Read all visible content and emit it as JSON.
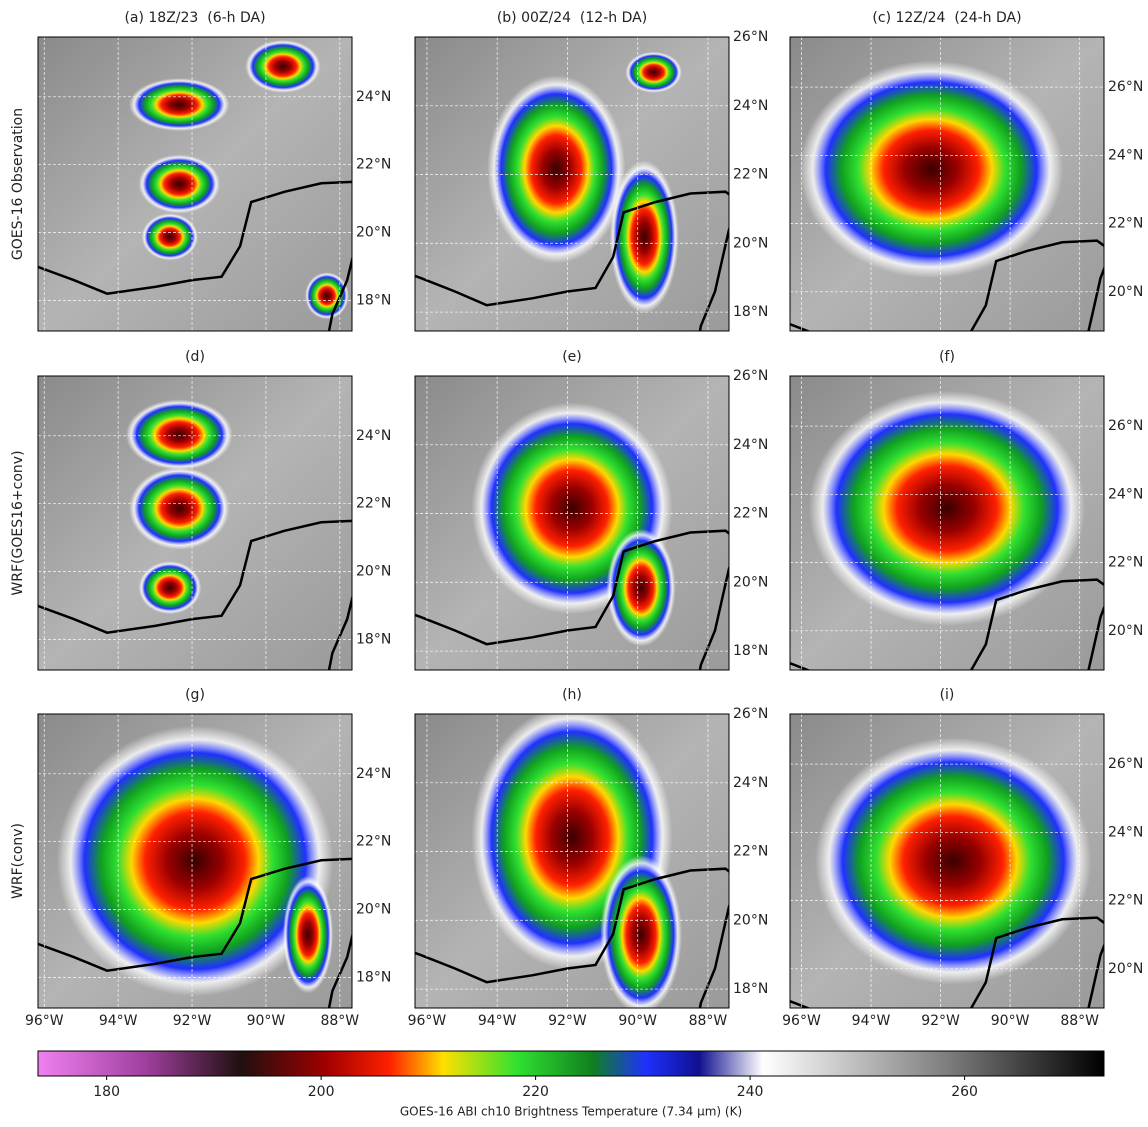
{
  "panels": [
    {
      "title": "(a) 18Z/23  (6-h DA)"
    },
    {
      "title": "(b) 00Z/24  (12-h DA)"
    },
    {
      "title": "(c) 12Z/24  (24-h DA)"
    },
    {
      "title": "(d)"
    },
    {
      "title": "(e)"
    },
    {
      "title": "(f)"
    },
    {
      "title": "(g)"
    },
    {
      "title": "(h)"
    },
    {
      "title": "(i)"
    }
  ],
  "row_labels": [
    "GOES-16 Observation",
    "WRF(GOES16+conv)",
    "WRF(conv)"
  ],
  "columns": [
    {
      "lat_lim": [
        17.1,
        25.76
      ],
      "lon_lim": [
        -96.17,
        -87.67
      ],
      "lat_ticks": [
        {
          "value": 18,
          "label": "18°N"
        },
        {
          "value": 20,
          "label": "20°N"
        },
        {
          "value": 22,
          "label": "22°N"
        },
        {
          "value": 24,
          "label": "24°N"
        }
      ],
      "lon_ticks": [
        {
          "value": -96,
          "label": "96°W"
        },
        {
          "value": -94,
          "label": "94°W"
        },
        {
          "value": -92,
          "label": "92°W"
        },
        {
          "value": -90,
          "label": "90°W"
        },
        {
          "value": -88,
          "label": "88°W"
        }
      ]
    },
    {
      "lat_lim": [
        17.45,
        26.0
      ],
      "lon_lim": [
        -96.34,
        -87.4
      ],
      "lat_ticks": [
        {
          "value": 18,
          "label": "18°N"
        },
        {
          "value": 20,
          "label": "20°N"
        },
        {
          "value": 22,
          "label": "22°N"
        },
        {
          "value": 24,
          "label": "24°N"
        },
        {
          "value": 26,
          "label": "26°N"
        }
      ],
      "lon_ticks": [
        {
          "value": -96,
          "label": "96°W"
        },
        {
          "value": -94,
          "label": "94°W"
        },
        {
          "value": -92,
          "label": "92°W"
        },
        {
          "value": -90,
          "label": "90°W"
        },
        {
          "value": -88,
          "label": "88°W"
        }
      ]
    },
    {
      "lat_lim": [
        18.85,
        27.47
      ],
      "lon_lim": [
        -96.33,
        -87.3
      ],
      "lat_ticks": [
        {
          "value": 20,
          "label": "20°N"
        },
        {
          "value": 22,
          "label": "22°N"
        },
        {
          "value": 24,
          "label": "24°N"
        },
        {
          "value": 26,
          "label": "26°N"
        }
      ],
      "lon_ticks": [
        {
          "value": -96,
          "label": "96°W"
        },
        {
          "value": -94,
          "label": "94°W"
        },
        {
          "value": -92,
          "label": "92°W"
        },
        {
          "value": -90,
          "label": "90°W"
        },
        {
          "value": -88,
          "label": "88°W"
        }
      ]
    }
  ],
  "colorbar": {
    "label": "GOES-16 ABI ch10 Brightness Temperature (7.34 μm) (K)",
    "lim": [
      173.6,
      273
    ],
    "ticks": [
      180,
      200,
      220,
      240,
      260
    ]
  }
}
